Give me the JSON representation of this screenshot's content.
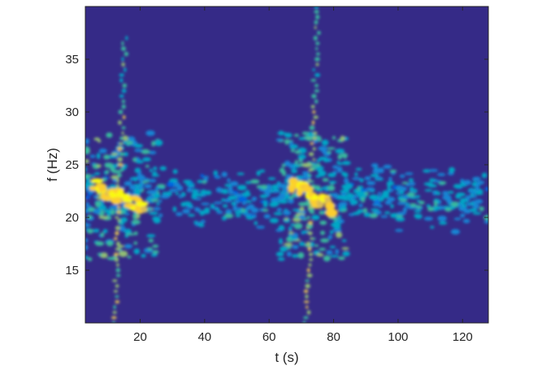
{
  "chart_data": {
    "type": "heatmap",
    "title": "",
    "xlabel": "t (s)",
    "ylabel": "f (Hz)",
    "xlim": [
      3,
      128
    ],
    "ylim": [
      10,
      40
    ],
    "xticks": [
      20,
      40,
      60,
      80,
      100,
      120
    ],
    "yticks": [
      15,
      20,
      25,
      30,
      35
    ],
    "grid": false,
    "colormap": [
      "#352a87",
      "#0363e1",
      "#1485d4",
      "#06a7c6",
      "#38b99e",
      "#92bf73",
      "#d9ba56",
      "#fcce2e",
      "#f9fb0e"
    ],
    "background": "#352a87",
    "events": [
      {
        "t_start": 6,
        "t_end": 22,
        "peak_f_start": 23,
        "peak_f_end": 21,
        "harmonic_t": 13.5,
        "harmonic_f_range": [
          10,
          37
        ]
      },
      {
        "t_start": 67,
        "t_end": 80,
        "peak_f_start": 23,
        "peak_f_end": 21,
        "harmonic_t": 73,
        "harmonic_f_range": [
          10,
          40
        ]
      }
    ],
    "background_band": {
      "f_center": 22,
      "f_range": [
        18,
        26
      ]
    }
  }
}
